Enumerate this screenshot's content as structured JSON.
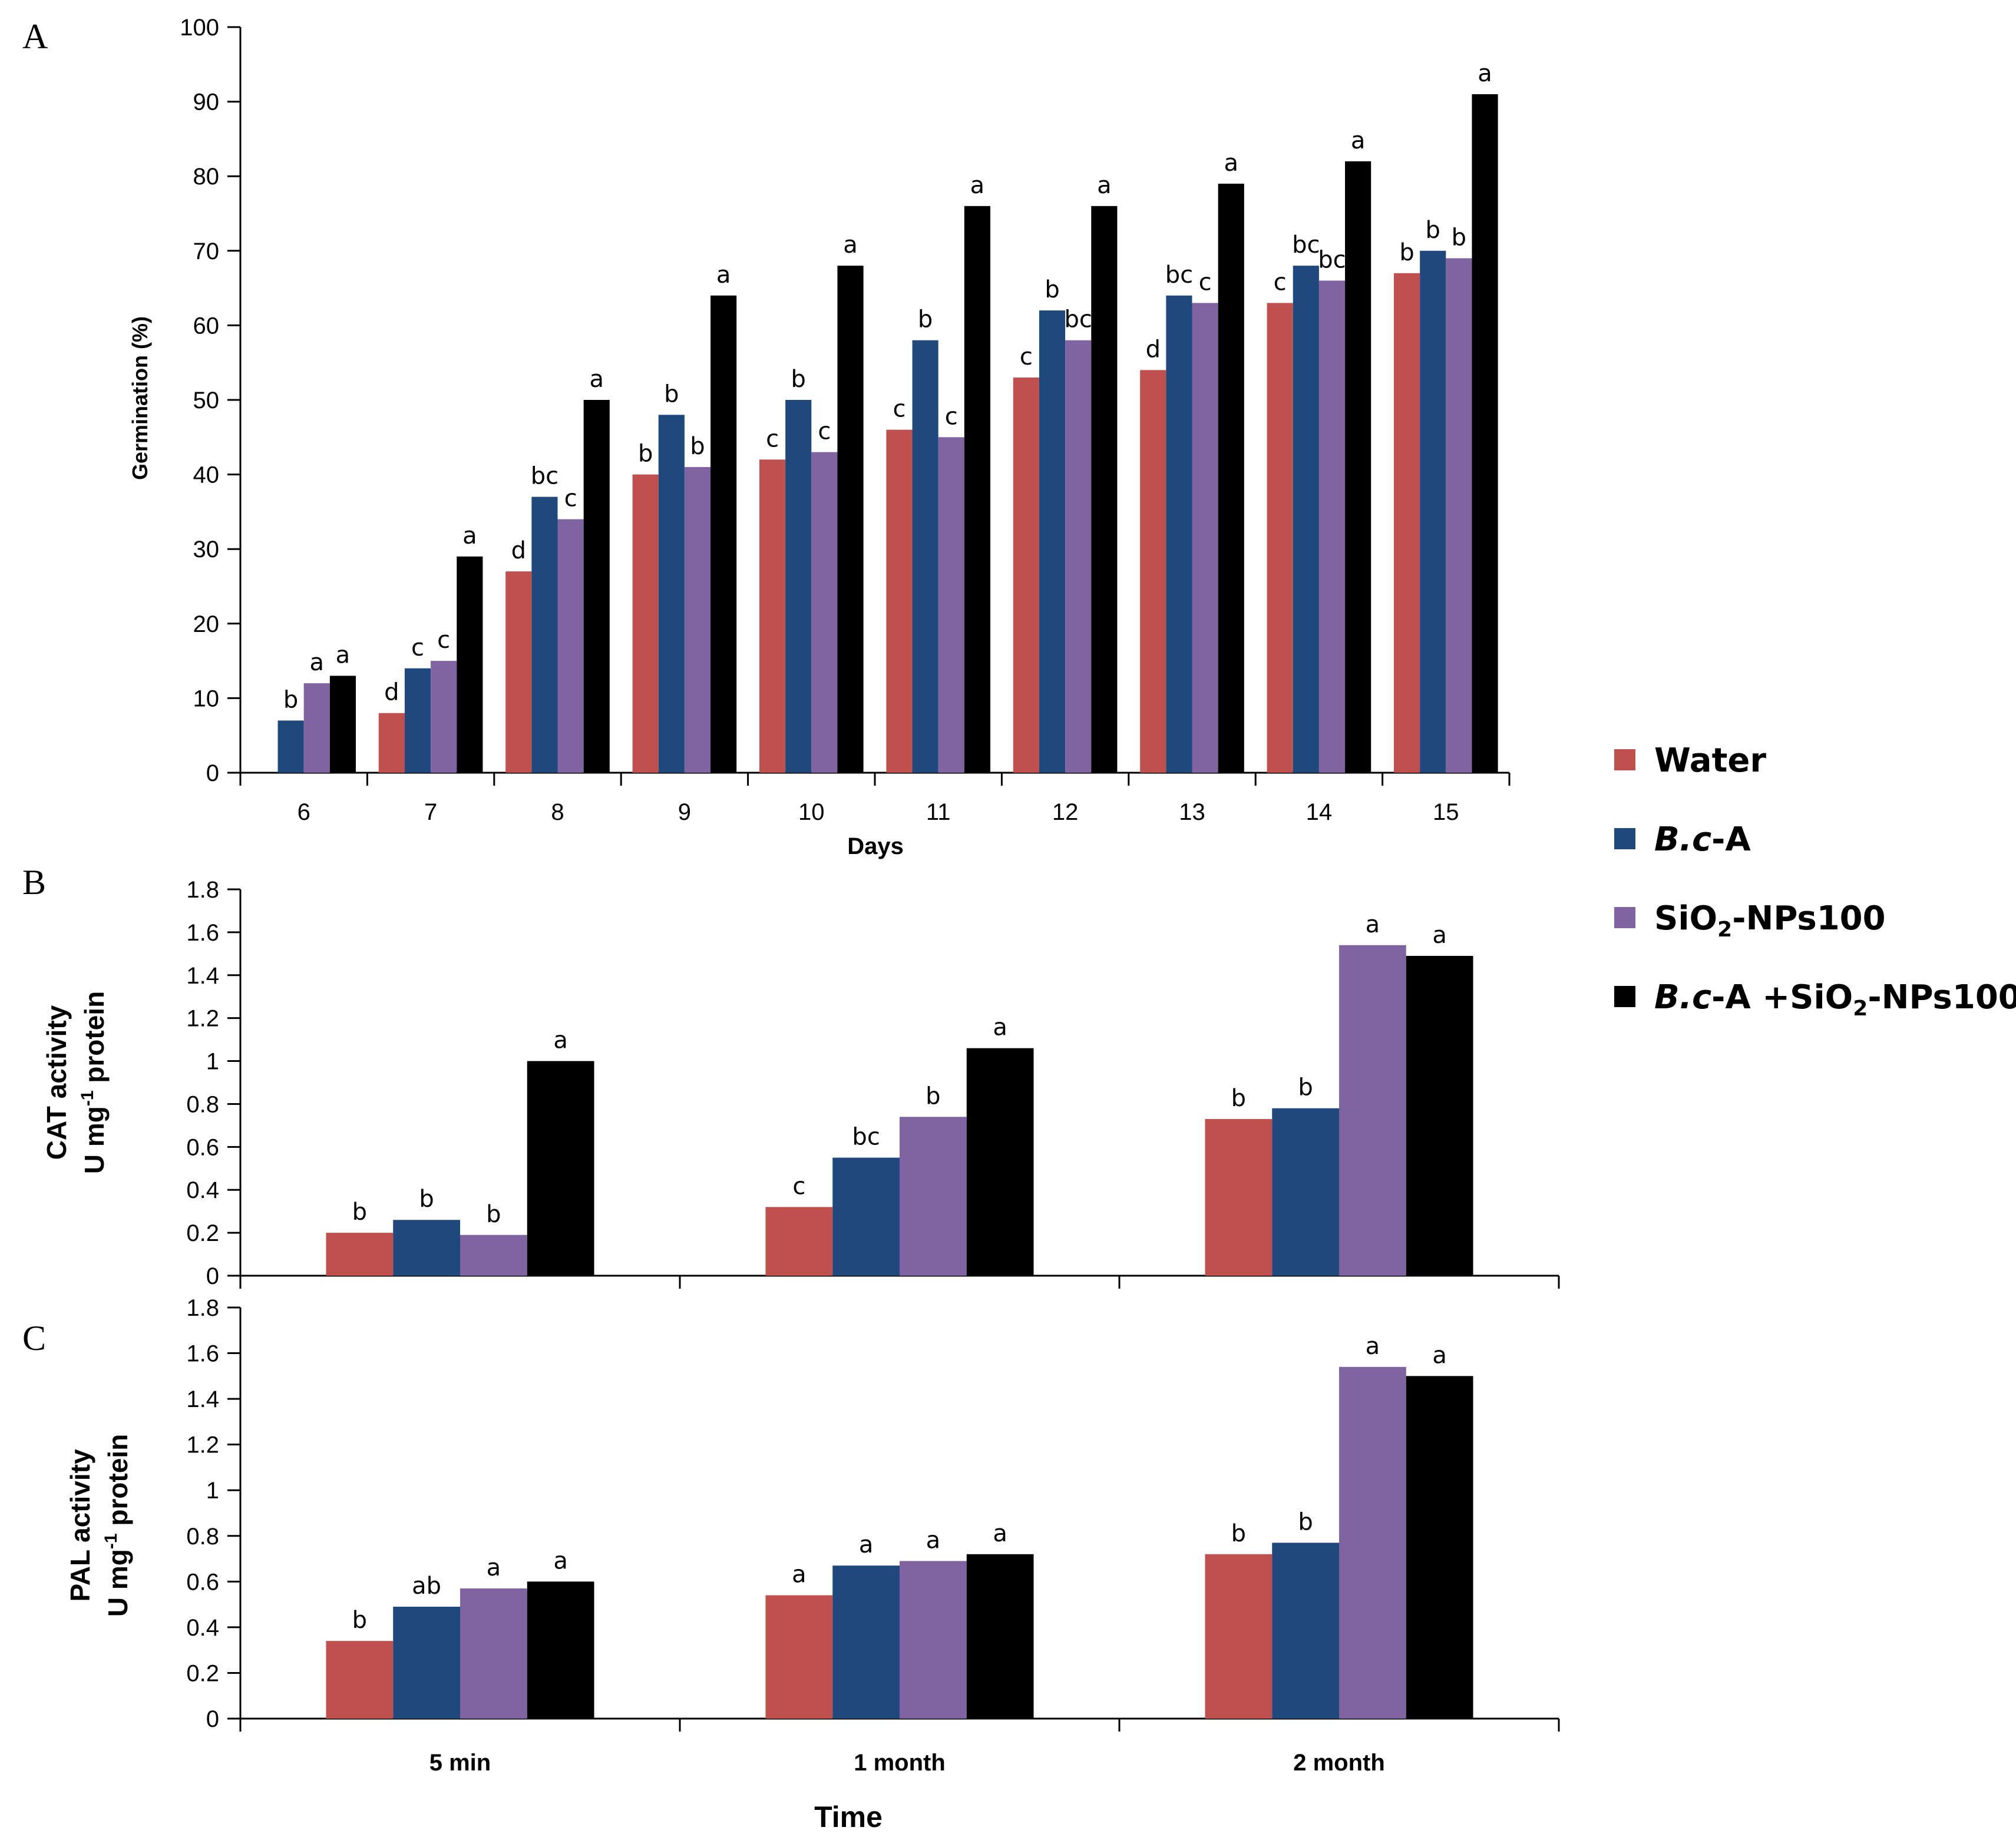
{
  "colors": {
    "Water": "#c0504d",
    "B.c-A": "#1f497d",
    "SiO2-NPs100": "#8064a2",
    "B.c-A +SiO2-NPs100": "#000000"
  },
  "legend": [
    {
      "italic": "B.c",
      "rest": "",
      "color": "#c0504d",
      "plain": "Water"
    },
    {
      "italic": "B.c",
      "rest": "-A",
      "color": "#1f497d",
      "plain": ""
    },
    {
      "italic": "",
      "rest": "",
      "color": "#8064a2",
      "plain": "SiO2-NPs100"
    },
    {
      "italic": "B.c",
      "rest": "-A +SiO2-NPs100",
      "color": "#000000",
      "plain": ""
    }
  ],
  "chart_data": [
    {
      "panel": "A",
      "type": "bar",
      "xlabel": "Days",
      "ylabel": "Germination (%)",
      "ylim": [
        0,
        100
      ],
      "yticks": [
        "0",
        "10",
        "20",
        "30",
        "40",
        "50",
        "60",
        "70",
        "80",
        "90",
        "100"
      ],
      "categories": [
        "6",
        "7",
        "8",
        "9",
        "10",
        "11",
        "12",
        "13",
        "14",
        "15"
      ],
      "series": [
        {
          "name": "Water",
          "values": [
            0,
            8,
            27,
            40,
            42,
            46,
            53,
            54,
            63,
            67
          ],
          "labels": [
            "",
            "d",
            "d",
            "b",
            "c",
            "c",
            "c",
            "d",
            "c",
            "b"
          ]
        },
        {
          "name": "B.c-A",
          "values": [
            7,
            14,
            37,
            48,
            50,
            58,
            62,
            64,
            68,
            70
          ],
          "labels": [
            "b",
            "c",
            "bc",
            "b",
            "b",
            "b",
            "b",
            "bc",
            "bc",
            "b"
          ]
        },
        {
          "name": "SiO2-NPs100",
          "values": [
            12,
            15,
            34,
            41,
            43,
            45,
            58,
            63,
            66,
            69
          ],
          "labels": [
            "a",
            "c",
            "c",
            "b",
            "c",
            "c",
            "bc",
            "c",
            "bc",
            "b"
          ]
        },
        {
          "name": "B.c-A +SiO2-NPs100",
          "values": [
            13,
            29,
            50,
            64,
            68,
            76,
            76,
            79,
            82,
            91
          ],
          "labels": [
            "a",
            "a",
            "a",
            "a",
            "a",
            "a",
            "a",
            "a",
            "a",
            "a"
          ]
        }
      ]
    },
    {
      "panel": "B",
      "type": "bar",
      "xlabel": "",
      "ylabel_line1": "CAT activity",
      "ylabel_line2": "U mg-1 protein",
      "ylim": [
        0,
        1.8
      ],
      "yticks": [
        "0",
        "0.2",
        "0.4",
        "0.6",
        "0.8",
        "1",
        "1.2",
        "1.4",
        "1.6",
        "1.8"
      ],
      "categories": [
        "5 min",
        "1 month",
        "2 month"
      ],
      "series": [
        {
          "name": "Water",
          "values": [
            0.2,
            0.32,
            0.73
          ],
          "labels": [
            "b",
            "c",
            "b"
          ]
        },
        {
          "name": "B.c-A",
          "values": [
            0.26,
            0.55,
            0.78
          ],
          "labels": [
            "b",
            "bc",
            "b"
          ]
        },
        {
          "name": "SiO2-NPs100",
          "values": [
            0.19,
            0.74,
            1.54
          ],
          "labels": [
            "b",
            "b",
            "a"
          ]
        },
        {
          "name": "B.c-A +SiO2-NPs100",
          "values": [
            1.0,
            1.06,
            1.49
          ],
          "labels": [
            "a",
            "a",
            "a"
          ]
        }
      ]
    },
    {
      "panel": "C",
      "type": "bar",
      "xlabel": "Time",
      "ylabel_line1": "PAL activity",
      "ylabel_line2": "U mg-1 protein",
      "ylim": [
        0,
        1.8
      ],
      "yticks": [
        "0",
        "0.2",
        "0.4",
        "0.6",
        "0.8",
        "1",
        "1.2",
        "1.4",
        "1.6",
        "1.8"
      ],
      "categories": [
        "5 min",
        "1 month",
        "2 month"
      ],
      "series": [
        {
          "name": "Water",
          "values": [
            0.34,
            0.54,
            0.72
          ],
          "labels": [
            "b",
            "a",
            "b"
          ]
        },
        {
          "name": "B.c-A",
          "values": [
            0.49,
            0.67,
            0.77
          ],
          "labels": [
            "ab",
            "a",
            "b"
          ]
        },
        {
          "name": "SiO2-NPs100",
          "values": [
            0.57,
            0.69,
            1.54
          ],
          "labels": [
            "a",
            "a",
            "a"
          ]
        },
        {
          "name": "B.c-A +SiO2-NPs100",
          "values": [
            0.6,
            0.72,
            1.5
          ],
          "labels": [
            "a",
            "a",
            "a"
          ]
        }
      ]
    }
  ]
}
